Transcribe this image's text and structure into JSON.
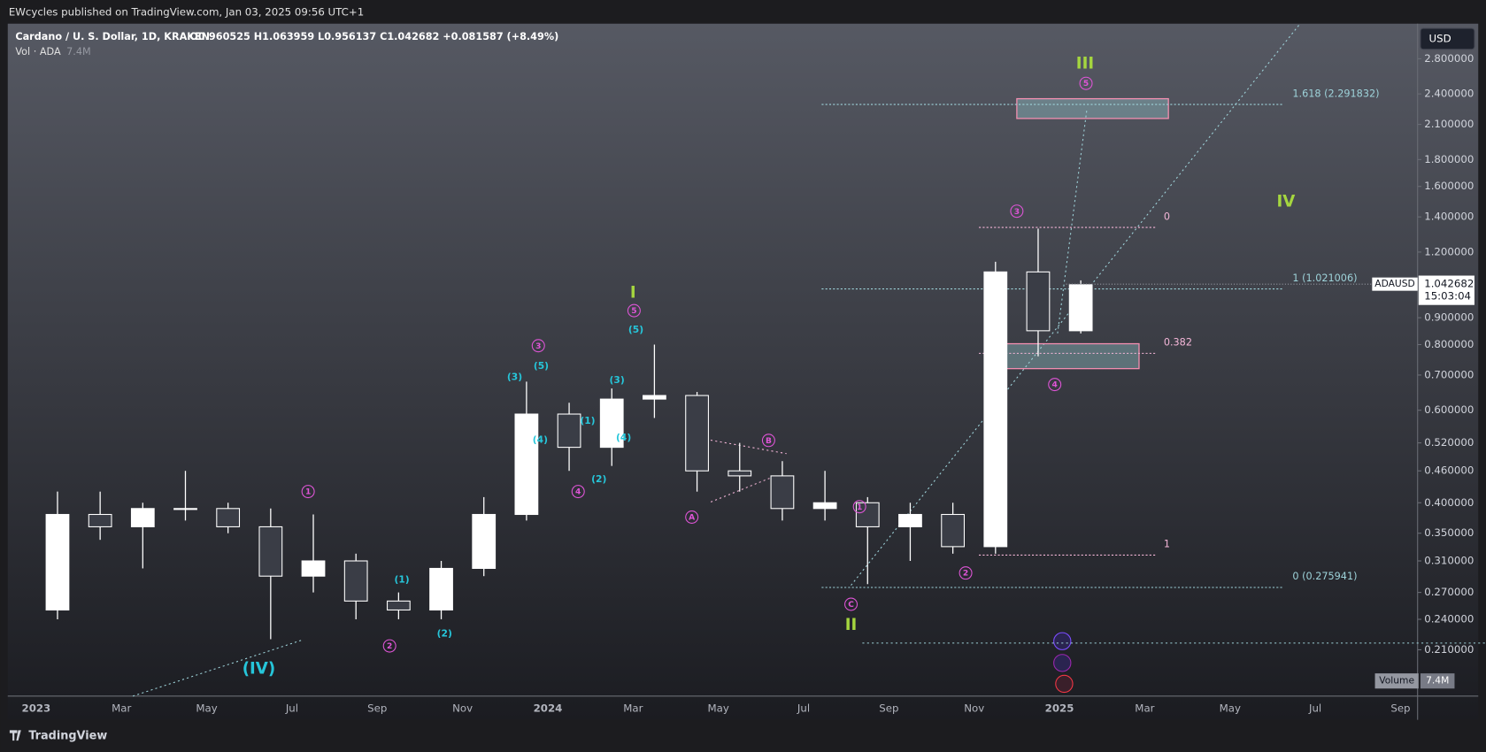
{
  "header": {
    "publisher": "EWcycles published on TradingView.com, Jan 03, 2025 09:56 UTC+1",
    "symbol": "Cardano / U. S. Dollar, 1D, KRAKEN",
    "ohlc": "O0.960525 H1.063959 L0.956137 C1.042682 +0.081587 (+8.49%)",
    "volume_name": "Vol · ADA",
    "volume_value": "7.4M",
    "currency": "USD"
  },
  "footer": {
    "brand": "TradingView"
  },
  "chart_data": {
    "type": "candlestick",
    "log_scale": true,
    "grid": false,
    "categories": [
      "2023",
      null,
      "Mar",
      null,
      "May",
      null,
      "Jul",
      null,
      "Sep",
      null,
      "Nov",
      null,
      "2024",
      null,
      "Mar",
      null,
      "May",
      null,
      "Jul",
      null,
      "Sep",
      null,
      "Nov",
      null,
      "2025",
      null,
      "Mar",
      null,
      "May",
      null,
      "Jul",
      null,
      "Sep"
    ],
    "open": [
      0.25,
      0.38,
      0.36,
      0.39,
      0.39,
      0.36,
      0.29,
      0.31,
      0.26,
      0.25,
      0.3,
      0.38,
      0.59,
      0.51,
      0.63,
      0.64,
      0.46,
      0.45,
      0.39,
      0.4,
      0.36,
      0.38,
      0.33,
      1.1,
      0.85,
      null,
      null,
      null,
      null,
      null,
      null,
      null,
      null
    ],
    "high": [
      0.42,
      0.42,
      0.4,
      0.46,
      0.4,
      0.39,
      0.38,
      0.32,
      0.27,
      0.31,
      0.41,
      0.68,
      0.62,
      0.66,
      0.8,
      0.65,
      0.52,
      0.48,
      0.46,
      0.41,
      0.4,
      0.4,
      1.15,
      1.33,
      1.06,
      null,
      null,
      null,
      null,
      null,
      null,
      null,
      null
    ],
    "low": [
      0.24,
      0.34,
      0.3,
      0.37,
      0.35,
      0.22,
      0.27,
      0.24,
      0.24,
      0.24,
      0.29,
      0.37,
      0.46,
      0.47,
      0.58,
      0.42,
      0.42,
      0.37,
      0.37,
      0.28,
      0.31,
      0.32,
      0.32,
      0.76,
      0.84,
      null,
      null,
      null,
      null,
      null,
      null,
      null,
      null
    ],
    "close": [
      0.38,
      0.36,
      0.39,
      0.39,
      0.36,
      0.29,
      0.31,
      0.26,
      0.25,
      0.3,
      0.38,
      0.59,
      0.51,
      0.63,
      0.64,
      0.46,
      0.45,
      0.39,
      0.4,
      0.36,
      0.38,
      0.33,
      1.1,
      0.85,
      1.04,
      null,
      null,
      null,
      null,
      null,
      null,
      null,
      null
    ],
    "up_color": "#ffffff",
    "down_color": "#3a3d46",
    "wick_color": "#ffffff",
    "ylim": [
      0.1714,
      3.265
    ],
    "yticks": [
      {
        "value": 2.8,
        "label": "2.800000"
      },
      {
        "value": 2.4,
        "label": "2.400000"
      },
      {
        "value": 2.1,
        "label": "2.100000"
      },
      {
        "value": 1.8,
        "label": "1.800000"
      },
      {
        "value": 1.6,
        "label": "1.600000"
      },
      {
        "value": 1.4,
        "label": "1.400000"
      },
      {
        "value": 1.2,
        "label": "1.200000"
      },
      {
        "value": 0.9,
        "label": "0.900000"
      },
      {
        "value": 0.8,
        "label": "0.800000"
      },
      {
        "value": 0.7,
        "label": "0.700000"
      },
      {
        "value": 0.6,
        "label": "0.600000"
      },
      {
        "value": 0.52,
        "label": "0.520000"
      },
      {
        "value": 0.46,
        "label": "0.460000"
      },
      {
        "value": 0.4,
        "label": "0.400000"
      },
      {
        "value": 0.35,
        "label": "0.350000"
      },
      {
        "value": 0.31,
        "label": "0.310000"
      },
      {
        "value": 0.27,
        "label": "0.270000"
      },
      {
        "value": 0.24,
        "label": "0.240000"
      },
      {
        "value": 0.21,
        "label": "0.210000"
      }
    ],
    "symbol_tag": "ADAUSD",
    "last_price": 1.042682,
    "countdown": "15:03:04",
    "volume_title": "Volume",
    "volume_value": "7.4M",
    "fib_levels": [
      {
        "label": "1.618 (2.291832)",
        "price": 2.291832,
        "color": "#9ed3da"
      },
      {
        "label": "1 (1.021006)",
        "price": 1.021006,
        "color": "#9ed3da"
      },
      {
        "label": "0 (0.275941)",
        "price": 0.275941,
        "color": "#9ed3da"
      },
      {
        "label": "0",
        "price": 1.337,
        "color": "#f4b6d8"
      },
      {
        "label": "0.382",
        "price": 0.77,
        "color": "#f4b6d8"
      },
      {
        "label": "1",
        "price": 0.318,
        "color": "#f4b6d8"
      }
    ],
    "zones": [
      {
        "low": 2.155,
        "high": 2.35,
        "color": "#f48fb1"
      },
      {
        "low": 0.72,
        "high": 0.803,
        "color": "#f48fb1"
      }
    ],
    "annotations": [
      {
        "text": "(IV)",
        "color": "#26c6da",
        "circled": false
      },
      {
        "text": "1",
        "color": "#e055d8",
        "circled": true
      },
      {
        "text": "2",
        "color": "#e055d8",
        "circled": true
      },
      {
        "text": "(1)",
        "color": "#26c6da",
        "circled": false
      },
      {
        "text": "(2)",
        "color": "#26c6da",
        "circled": false
      },
      {
        "text": "(3)",
        "color": "#26c6da",
        "circled": false
      },
      {
        "text": "3",
        "color": "#e055d8",
        "circled": true
      },
      {
        "text": "(5)",
        "color": "#26c6da",
        "circled": false
      },
      {
        "text": "(4)",
        "color": "#26c6da",
        "circled": false
      },
      {
        "text": "4",
        "color": "#e055d8",
        "circled": true
      },
      {
        "text": "(1)",
        "color": "#26c6da",
        "circled": false
      },
      {
        "text": "(2)",
        "color": "#26c6da",
        "circled": false
      },
      {
        "text": "(3)",
        "color": "#26c6da",
        "circled": false
      },
      {
        "text": "(4)",
        "color": "#26c6da",
        "circled": false
      },
      {
        "text": "I",
        "color": "#a5d63f",
        "circled": false
      },
      {
        "text": "5",
        "color": "#e055d8",
        "circled": true
      },
      {
        "text": "(5)",
        "color": "#26c6da",
        "circled": false
      },
      {
        "text": "B",
        "color": "#e055d8",
        "circled": true
      },
      {
        "text": "A",
        "color": "#e055d8",
        "circled": true
      },
      {
        "text": "1",
        "color": "#e055d8",
        "circled": true
      },
      {
        "text": "C",
        "color": "#e055d8",
        "circled": true
      },
      {
        "text": "II",
        "color": "#a5d63f",
        "circled": false
      },
      {
        "text": "2",
        "color": "#e055d8",
        "circled": true
      },
      {
        "text": "3",
        "color": "#e055d8",
        "circled": true
      },
      {
        "text": "4",
        "color": "#e055d8",
        "circled": true
      },
      {
        "text": "III",
        "color": "#a5d63f",
        "circled": false
      },
      {
        "text": "5",
        "color": "#e055d8",
        "circled": true
      },
      {
        "text": "IV",
        "color": "#a5d63f",
        "circled": false
      }
    ]
  }
}
